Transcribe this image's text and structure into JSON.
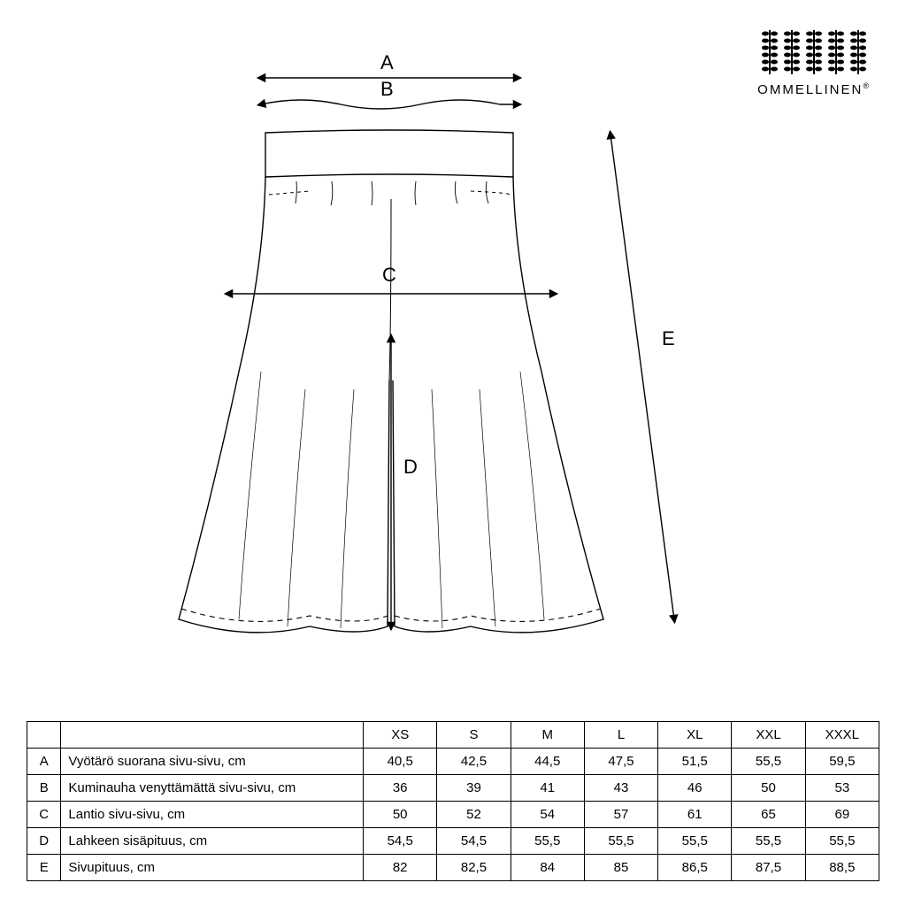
{
  "brand": {
    "name": "OMMELLINEN",
    "reg": "®"
  },
  "diagram": {
    "labels": {
      "A": "A",
      "B": "B",
      "C": "C",
      "D": "D",
      "E": "E"
    },
    "stroke": "#000000",
    "stroke_width": 1.4,
    "dash": "6,5"
  },
  "table": {
    "sizes": [
      "XS",
      "S",
      "M",
      "L",
      "XL",
      "XXL",
      "XXXL"
    ],
    "rows": [
      {
        "letter": "A",
        "label": "Vyötärö suorana sivu-sivu, cm",
        "values": [
          "40,5",
          "42,5",
          "44,5",
          "47,5",
          "51,5",
          "55,5",
          "59,5"
        ]
      },
      {
        "letter": "B",
        "label": "Kuminauha venyttämättä sivu-sivu, cm",
        "values": [
          "36",
          "39",
          "41",
          "43",
          "46",
          "50",
          "53"
        ]
      },
      {
        "letter": "C",
        "label": "Lantio sivu-sivu, cm",
        "values": [
          "50",
          "52",
          "54",
          "57",
          "61",
          "65",
          "69"
        ]
      },
      {
        "letter": "D",
        "label": "Lahkeen sisäpituus, cm",
        "values": [
          "54,5",
          "54,5",
          "55,5",
          "55,5",
          "55,5",
          "55,5",
          "55,5"
        ]
      },
      {
        "letter": "E",
        "label": "Sivupituus, cm",
        "values": [
          "82",
          "82,5",
          "84",
          "85",
          "86,5",
          "87,5",
          "88,5"
        ]
      }
    ]
  }
}
